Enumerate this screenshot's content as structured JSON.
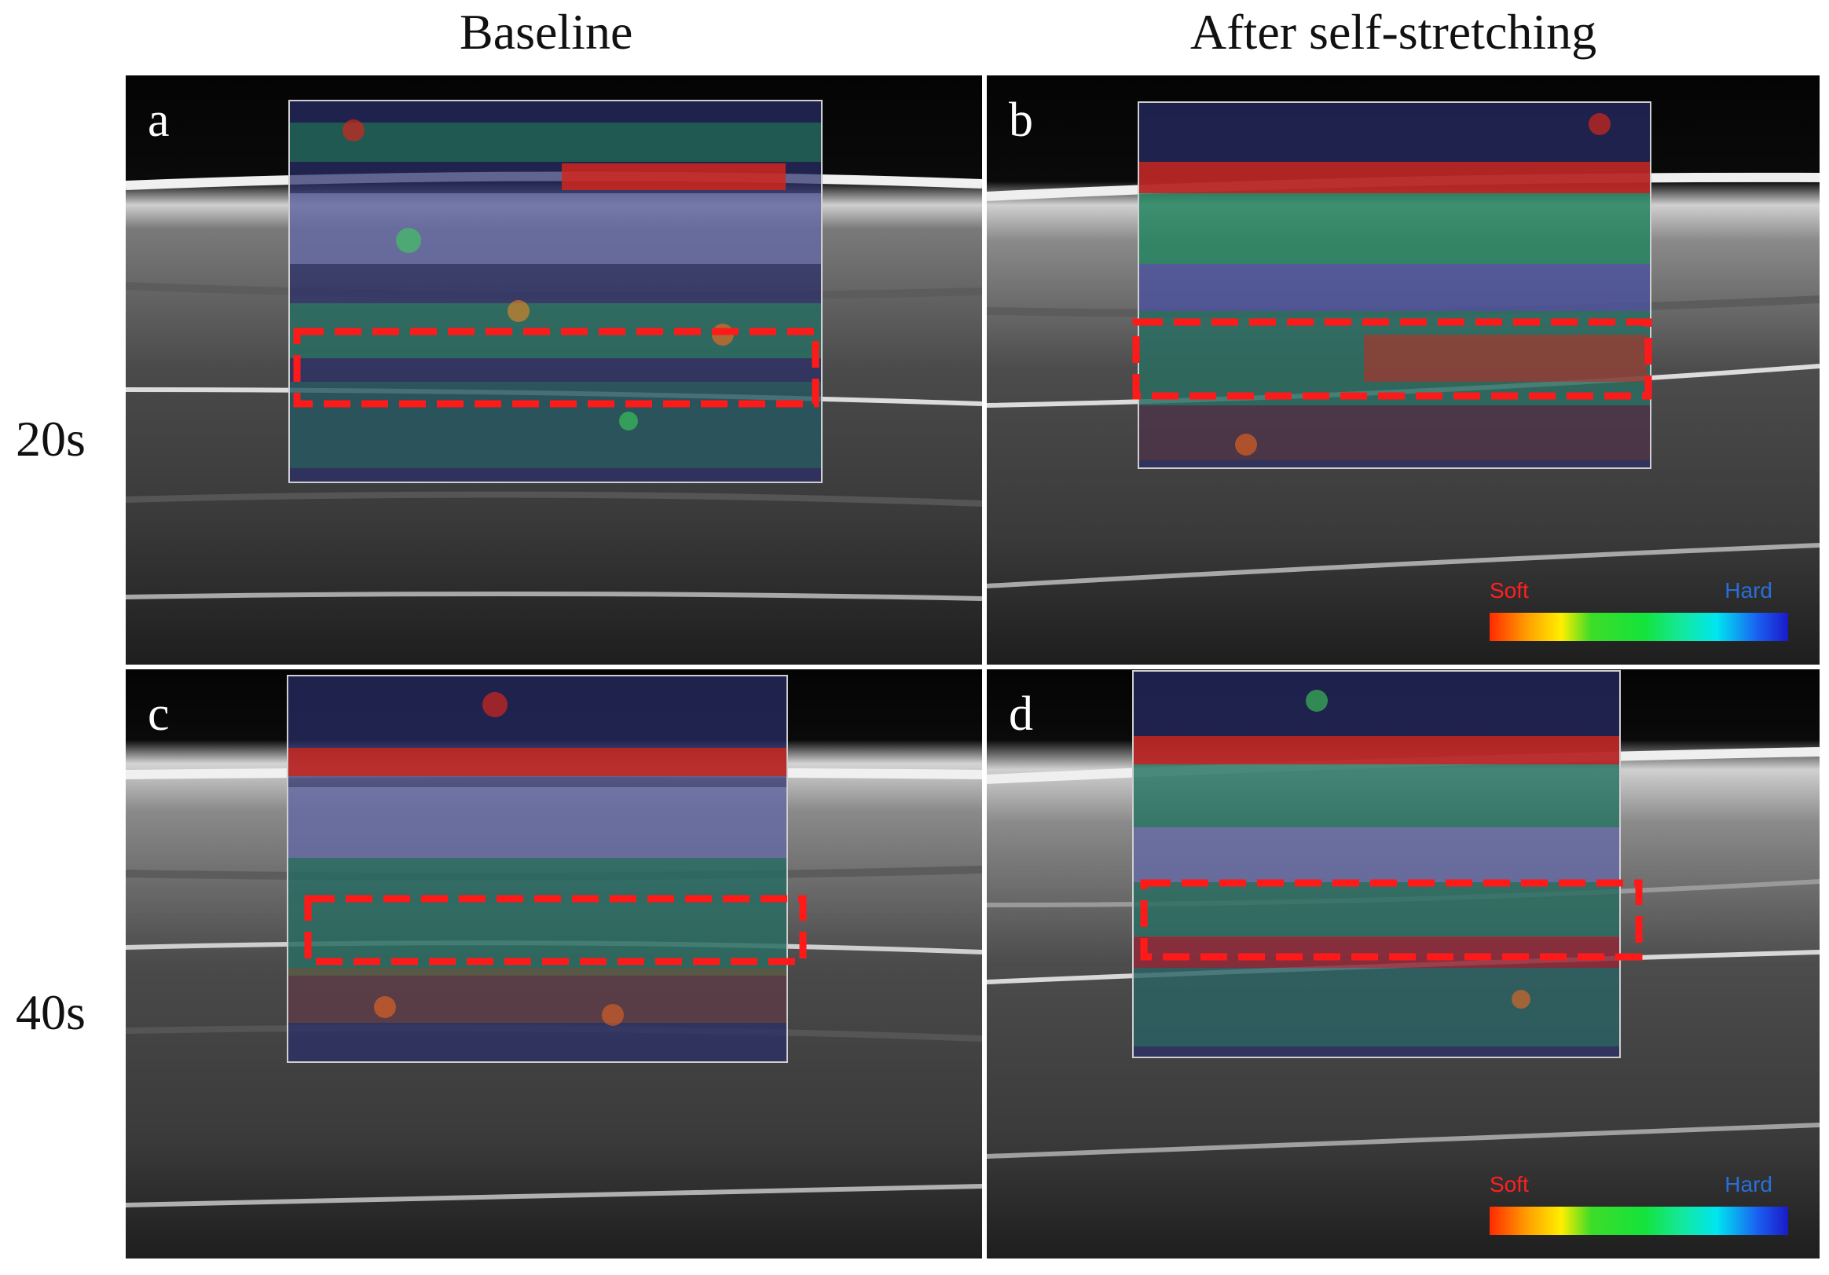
{
  "columns": {
    "baseline": "Baseline",
    "after": "After self-stretching"
  },
  "rows": {
    "row1": "20s",
    "row2": "40s"
  },
  "panels": {
    "a": "a",
    "b": "b",
    "c": "c",
    "d": "d"
  },
  "colorbar": {
    "soft": "Soft",
    "hard": "Hard"
  },
  "colors": {
    "roi_dashed": "#ff1a1a",
    "soft": "#ff2020",
    "hard": "#2a6fd8"
  }
}
